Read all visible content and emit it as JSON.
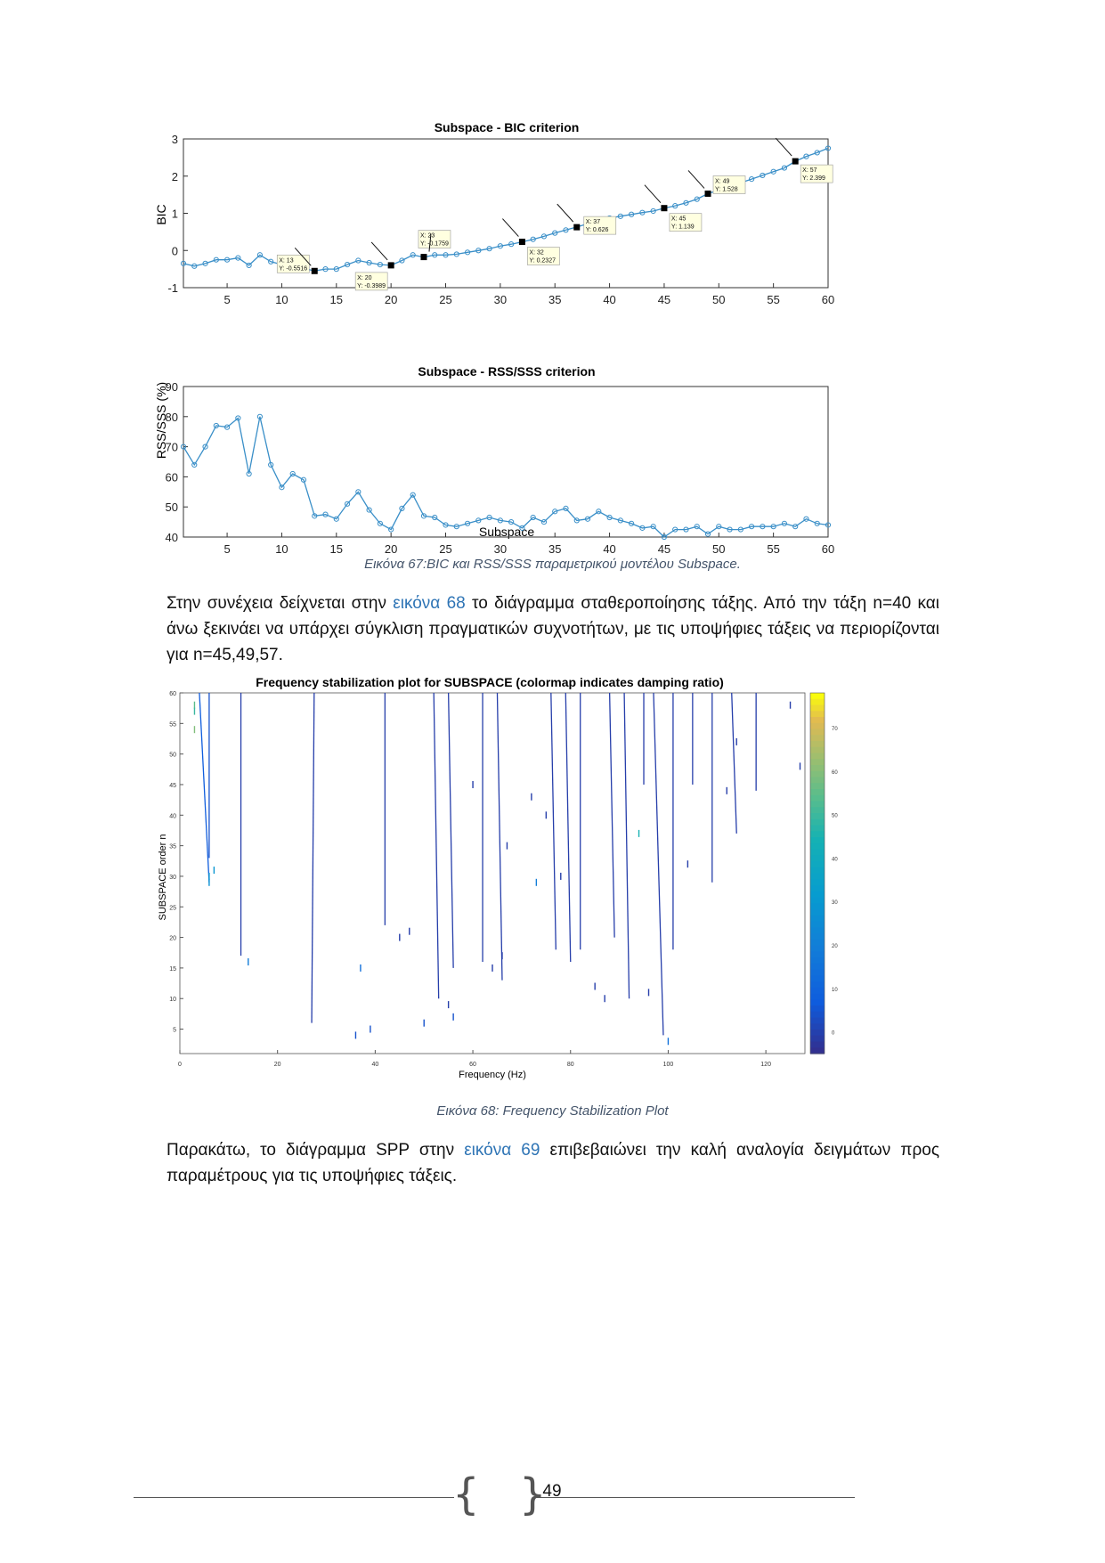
{
  "figures": {
    "bic": {
      "title": "Subspace - BIC criterion",
      "ylabel": "BIC",
      "xticks": [
        "5",
        "10",
        "15",
        "20",
        "25",
        "30",
        "35",
        "40",
        "45",
        "50",
        "55",
        "60"
      ],
      "yticks": [
        "3",
        "2",
        "1",
        "0",
        "-1"
      ]
    },
    "rss": {
      "title": "Subspace - RSS/SSS criterion",
      "ylabel": "RSS/SSS (%)",
      "xlabel": "Subspace",
      "xticks": [
        "5",
        "10",
        "15",
        "20",
        "25",
        "30",
        "35",
        "40",
        "45",
        "50",
        "55",
        "60"
      ],
      "yticks": [
        "90",
        "80",
        "70",
        "60",
        "50",
        "40"
      ]
    },
    "stab": {
      "title": "Frequency stabilization plot for SUBSPACE (colormap indicates damping ratio)",
      "ylabel": "SUBSPACE order n",
      "xlabel": "Frequency (Hz)",
      "xticks": [
        "0",
        "20",
        "40",
        "60",
        "80",
        "100",
        "120"
      ],
      "yticks": [
        "60",
        "55",
        "50",
        "45",
        "40",
        "35",
        "30",
        "25",
        "20",
        "15",
        "10",
        "5"
      ],
      "cbar_ticks": [
        "70",
        "60",
        "50",
        "40",
        "30",
        "20",
        "10",
        "0"
      ]
    }
  },
  "chart_data": [
    {
      "type": "line",
      "title": "Subspace - BIC criterion",
      "ylabel": "BIC",
      "xlim": [
        1,
        60
      ],
      "ylim": [
        -1,
        3
      ],
      "x": [
        1,
        2,
        3,
        4,
        5,
        6,
        7,
        8,
        9,
        10,
        11,
        12,
        13,
        14,
        15,
        16,
        17,
        18,
        19,
        20,
        21,
        22,
        23,
        24,
        25,
        26,
        27,
        28,
        29,
        30,
        31,
        32,
        33,
        34,
        35,
        36,
        37,
        38,
        39,
        40,
        41,
        42,
        43,
        44,
        45,
        46,
        47,
        48,
        49,
        50,
        51,
        52,
        53,
        54,
        55,
        56,
        57,
        58,
        59,
        60
      ],
      "series": [
        {
          "values": [
            -0.35,
            -0.42,
            -0.35,
            -0.25,
            -0.25,
            -0.2,
            -0.4,
            -0.12,
            -0.3,
            -0.38,
            -0.38,
            -0.48,
            -0.55,
            -0.5,
            -0.5,
            -0.38,
            -0.27,
            -0.33,
            -0.38,
            -0.4,
            -0.27,
            -0.12,
            -0.18,
            -0.12,
            -0.12,
            -0.1,
            -0.05,
            0.0,
            0.05,
            0.12,
            0.17,
            0.23,
            0.3,
            0.38,
            0.47,
            0.55,
            0.63,
            0.72,
            0.8,
            0.87,
            0.92,
            0.97,
            1.02,
            1.06,
            1.14,
            1.2,
            1.28,
            1.38,
            1.53,
            1.62,
            1.72,
            1.82,
            1.92,
            2.02,
            2.12,
            2.22,
            2.4,
            2.53,
            2.63,
            2.75
          ]
        }
      ],
      "datatips": [
        {
          "x_label": "X: 13",
          "y_label": "Y: -0.5516"
        },
        {
          "x_label": "X: 20",
          "y_label": "Y: -0.3989"
        },
        {
          "x_label": "X: 23",
          "y_label": "Y: -0.1759"
        },
        {
          "x_label": "X: 32",
          "y_label": "Y: 0.2327"
        },
        {
          "x_label": "X: 37",
          "y_label": "Y: 0.626"
        },
        {
          "x_label": "X: 45",
          "y_label": "Y: 1.139"
        },
        {
          "x_label": "X: 49",
          "y_label": "Y: 1.528"
        },
        {
          "x_label": "X: 57",
          "y_label": "Y: 2.399"
        }
      ]
    },
    {
      "type": "line",
      "title": "Subspace - RSS/SSS criterion",
      "xlabel": "Subspace",
      "ylabel": "RSS/SSS (%)",
      "xlim": [
        1,
        60
      ],
      "ylim": [
        40,
        90
      ],
      "x": [
        1,
        2,
        3,
        4,
        5,
        6,
        7,
        8,
        9,
        10,
        11,
        12,
        13,
        14,
        15,
        16,
        17,
        18,
        19,
        20,
        21,
        22,
        23,
        24,
        25,
        26,
        27,
        28,
        29,
        30,
        31,
        32,
        33,
        34,
        35,
        36,
        37,
        38,
        39,
        40,
        41,
        42,
        43,
        44,
        45,
        46,
        47,
        48,
        49,
        50,
        51,
        52,
        53,
        54,
        55,
        56,
        57,
        58,
        59,
        60
      ],
      "series": [
        {
          "values": [
            70,
            64,
            70,
            77,
            76.5,
            79.5,
            61,
            80,
            64,
            56.5,
            61,
            59,
            47,
            47.5,
            46,
            51,
            55,
            49,
            44.5,
            42.5,
            49.5,
            54,
            47,
            46.5,
            44,
            43.5,
            44.5,
            45.5,
            46.5,
            45.5,
            45,
            43,
            46.5,
            45,
            48.5,
            49.5,
            45.5,
            46,
            48.5,
            46.5,
            45.5,
            44.5,
            43,
            43.5,
            40,
            42.5,
            42.5,
            43.5,
            41,
            43.5,
            42.5,
            42.5,
            43.5,
            43.5,
            43.5,
            44.5,
            43.5,
            46,
            44.5,
            44
          ]
        }
      ]
    },
    {
      "type": "scatter",
      "title": "Frequency stabilization plot for SUBSPACE (colormap indicates damping ratio)",
      "xlabel": "Frequency (Hz)",
      "ylabel": "SUBSPACE order n",
      "xlim": [
        0,
        128
      ],
      "ylim": [
        1,
        60
      ],
      "colorbar": {
        "range": [
          -5,
          78
        ],
        "colormap": "parula"
      },
      "columns": [
        {
          "f_top": 4,
          "f_bot": 6,
          "n_from": 29,
          "n_to": 60,
          "damping": 8
        },
        {
          "f_top": 6,
          "f_bot": 6,
          "n_from": 33,
          "n_to": 60,
          "damping": 5
        },
        {
          "f_top": 12.5,
          "f_bot": 12.5,
          "n_from": 17,
          "n_to": 60,
          "damping": 0
        },
        {
          "f_top": 27.5,
          "f_bot": 27,
          "n_from": 6,
          "n_to": 60,
          "damping": 0
        },
        {
          "f_top": 42,
          "f_bot": 42,
          "n_from": 22,
          "n_to": 60,
          "damping": 0
        },
        {
          "f_top": 52,
          "f_bot": 53,
          "n_from": 10,
          "n_to": 60,
          "damping": 0
        },
        {
          "f_top": 55,
          "f_bot": 56,
          "n_from": 15,
          "n_to": 60,
          "damping": 0
        },
        {
          "f_top": 62,
          "f_bot": 62,
          "n_from": 16,
          "n_to": 60,
          "damping": 0
        },
        {
          "f_top": 65,
          "f_bot": 66,
          "n_from": 13,
          "n_to": 60,
          "damping": 0
        },
        {
          "f_top": 76,
          "f_bot": 77,
          "n_from": 18,
          "n_to": 60,
          "damping": 0
        },
        {
          "f_top": 79,
          "f_bot": 80,
          "n_from": 16,
          "n_to": 60,
          "damping": 0
        },
        {
          "f_top": 82,
          "f_bot": 82,
          "n_from": 18,
          "n_to": 60,
          "damping": 0
        },
        {
          "f_top": 88,
          "f_bot": 89,
          "n_from": 20,
          "n_to": 60,
          "damping": 0
        },
        {
          "f_top": 91,
          "f_bot": 92,
          "n_from": 10,
          "n_to": 60,
          "damping": 0
        },
        {
          "f_top": 95,
          "f_bot": 95,
          "n_from": 45,
          "n_to": 60,
          "damping": 0
        },
        {
          "f_top": 97,
          "f_bot": 99,
          "n_from": 4,
          "n_to": 60,
          "damping": 0
        },
        {
          "f_top": 101,
          "f_bot": 101,
          "n_from": 18,
          "n_to": 60,
          "damping": 0
        },
        {
          "f_top": 105,
          "f_bot": 105,
          "n_from": 45,
          "n_to": 60,
          "damping": 0
        },
        {
          "f_top": 109,
          "f_bot": 109,
          "n_from": 29,
          "n_to": 60,
          "damping": 0
        },
        {
          "f_top": 113,
          "f_bot": 114,
          "n_from": 37,
          "n_to": 60,
          "damping": 0
        },
        {
          "f_top": 118,
          "f_bot": 118,
          "n_from": 44,
          "n_to": 60,
          "damping": 0
        }
      ],
      "points": [
        {
          "f": 3,
          "n": 58,
          "damping": 55
        },
        {
          "f": 3,
          "n": 57,
          "damping": 50
        },
        {
          "f": 3,
          "n": 54,
          "damping": 60
        },
        {
          "f": 7,
          "n": 31,
          "damping": 30
        },
        {
          "f": 6,
          "n": 30,
          "damping": 30
        },
        {
          "f": 6,
          "n": 29,
          "damping": 28
        },
        {
          "f": 14,
          "n": 16,
          "damping": 20
        },
        {
          "f": 37,
          "n": 15,
          "damping": 15
        },
        {
          "f": 36,
          "n": 4,
          "damping": 5
        },
        {
          "f": 39,
          "n": 5,
          "damping": 5
        },
        {
          "f": 45,
          "n": 20,
          "damping": 0
        },
        {
          "f": 47,
          "n": 21,
          "damping": 0
        },
        {
          "f": 50,
          "n": 6,
          "damping": 5
        },
        {
          "f": 56,
          "n": 7,
          "damping": 5
        },
        {
          "f": 55,
          "n": 9,
          "damping": 0
        },
        {
          "f": 64,
          "n": 15,
          "damping": 0
        },
        {
          "f": 66,
          "n": 17,
          "damping": 0
        },
        {
          "f": 72,
          "n": 43,
          "damping": 0
        },
        {
          "f": 73,
          "n": 29,
          "damping": 20
        },
        {
          "f": 75,
          "n": 40,
          "damping": 0
        },
        {
          "f": 78,
          "n": 30,
          "damping": 0
        },
        {
          "f": 85,
          "n": 12,
          "damping": 0
        },
        {
          "f": 87,
          "n": 10,
          "damping": 0
        },
        {
          "f": 94,
          "n": 37,
          "damping": 45
        },
        {
          "f": 96,
          "n": 11,
          "damping": 0
        },
        {
          "f": 100,
          "n": 3,
          "damping": 15
        },
        {
          "f": 104,
          "n": 32,
          "damping": 0
        },
        {
          "f": 112,
          "n": 44,
          "damping": 0
        },
        {
          "f": 114,
          "n": 52,
          "damping": 0
        },
        {
          "f": 125,
          "n": 58,
          "damping": 0
        },
        {
          "f": 127,
          "n": 48,
          "damping": 0
        },
        {
          "f": 67,
          "n": 35,
          "damping": 0
        },
        {
          "f": 60,
          "n": 45,
          "damping": 0
        }
      ]
    }
  ],
  "captions": {
    "fig67": "Εικόνα 67:BIC και RSS/SSS παραμετρικού μοντέλου Subspace.",
    "fig68": "Εικόνα 68: Frequency Stabilization Plot"
  },
  "paragraphs": {
    "p1_before": "Στην συνέχεια δείχνεται στην ",
    "p1_link": "εικόνα 68",
    "p1_after": " το διάγραμμα σταθεροποίησης τάξης. Από την τάξη n=40 και άνω ξεκινάει να υπάρχει σύγκλιση πραγματικών συχνοτήτων, με τις υποψήφιες τάξεις να περιορίζονται για n=45,49,57.",
    "p2_before": "Παρακάτω, το διάγραμμα SPP στην ",
    "p2_link": "εικόνα 69",
    "p2_after": " επιβεβαιώνει την καλή αναλογία δειγμάτων προς παραμέτρους για τις υποψήφιες τάξεις."
  },
  "footer": {
    "page_number": "49"
  },
  "colors": {
    "line": "#3a8fc8",
    "marker": "#000000",
    "link": "#2e74b5",
    "stab": "#2a2d9c"
  }
}
